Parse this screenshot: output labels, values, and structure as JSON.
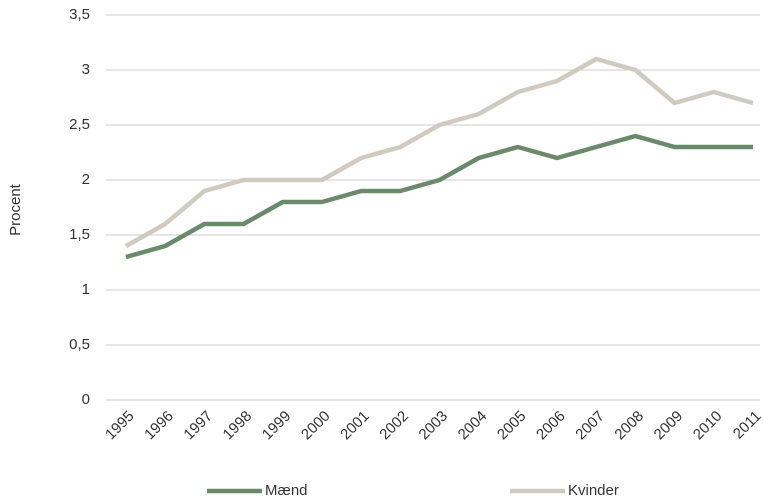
{
  "chart_data": {
    "type": "line",
    "y_label": "Procent",
    "categories": [
      "1995",
      "1996",
      "1997",
      "1998",
      "1999",
      "2000",
      "2001",
      "2002",
      "2003",
      "2004",
      "2005",
      "2006",
      "2007",
      "2008",
      "2009",
      "2010",
      "2011"
    ],
    "series": [
      {
        "name": "Mænd",
        "color": "#6b8a6b",
        "values": [
          1.3,
          1.4,
          1.6,
          1.6,
          1.8,
          1.8,
          1.9,
          1.9,
          2.0,
          2.2,
          2.3,
          2.2,
          2.3,
          2.4,
          2.3,
          2.3,
          2.3
        ]
      },
      {
        "name": "Kvinder",
        "color": "#cfcbc0",
        "values": [
          1.4,
          1.6,
          1.9,
          2.0,
          2.0,
          2.0,
          2.2,
          2.3,
          2.5,
          2.6,
          2.8,
          2.9,
          3.1,
          3.0,
          2.7,
          2.8,
          2.7
        ]
      }
    ],
    "ylim": [
      0,
      3.5
    ],
    "yticks": [
      0,
      {
        "value": 0.5,
        "label": "0,5"
      },
      1,
      {
        "value": 1.5,
        "label": "1,5"
      },
      2,
      {
        "value": 2.5,
        "label": "2,5"
      },
      3,
      {
        "value": 3.5,
        "label": "3,5"
      }
    ],
    "grid": true,
    "legend": "bottom"
  }
}
